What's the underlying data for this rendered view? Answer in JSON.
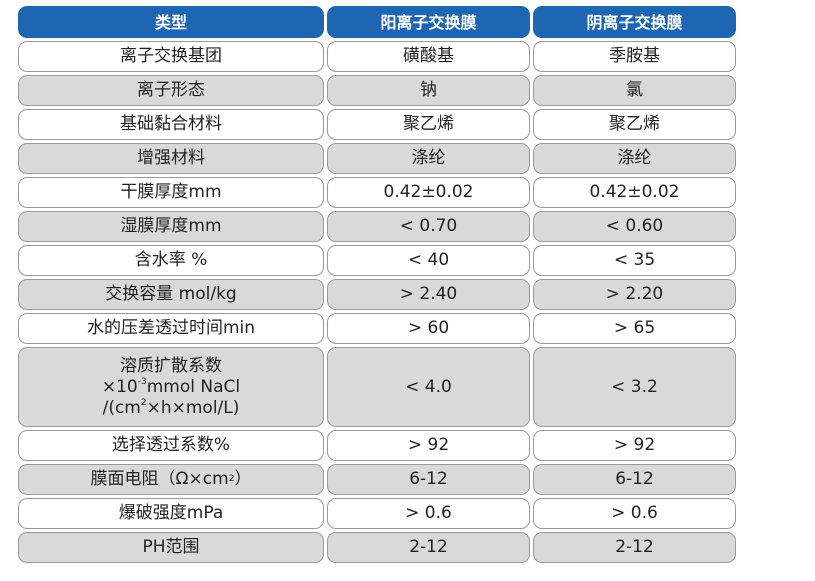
{
  "header": [
    "类型",
    "阳离子交换膜",
    "阴离子交换膜"
  ],
  "rows": [
    {
      "label": "离子交换基团",
      "cation": "磺酸基",
      "anion": "季胺基"
    },
    {
      "label": "离子形态",
      "cation": "钠",
      "anion": "氯"
    },
    {
      "label": "基础黏合材料",
      "cation": "聚乙烯",
      "anion": "聚乙烯"
    },
    {
      "label": "增强材料",
      "cation": "涤纶",
      "anion": "涤纶"
    },
    {
      "label": "干膜厚度mm",
      "cation": "0.42±0.02",
      "anion": "0.42±0.02"
    },
    {
      "label": "湿膜厚度mm",
      "cation": "< 0.70",
      "anion": "< 0.60"
    },
    {
      "label": "含水率 %",
      "cation": "< 40",
      "anion": "< 35"
    },
    {
      "label": "交换容量 mol/kg",
      "cation": "> 2.40",
      "anion": "> 2.20"
    },
    {
      "label": "水的压差透过时间min",
      "cation": "> 60",
      "anion": "> 65"
    },
    {
      "label_lines": {
        "line1": "溶质扩散系数",
        "line2_pre": "×10",
        "line2_sup": "-3",
        "line2_post": "mmol NaCl",
        "line3_pre": "/(cm",
        "line3_sup": "2",
        "line3_post": "×h×mol/L)"
      },
      "cation": "< 4.0",
      "anion": "< 3.2"
    },
    {
      "label": "选择透过系数%",
      "cation": "> 92",
      "anion": "> 92"
    },
    {
      "label_pre": "膜面电阻（Ω×cm",
      "label_sup": "2",
      "label_post": "）",
      "cation": "6-12",
      "anion": "6-12"
    },
    {
      "label": "爆破强度mPa",
      "cation": "> 0.6",
      "anion": "> 0.6"
    },
    {
      "label": "PH范围",
      "cation": "2-12",
      "anion": "2-12"
    }
  ]
}
